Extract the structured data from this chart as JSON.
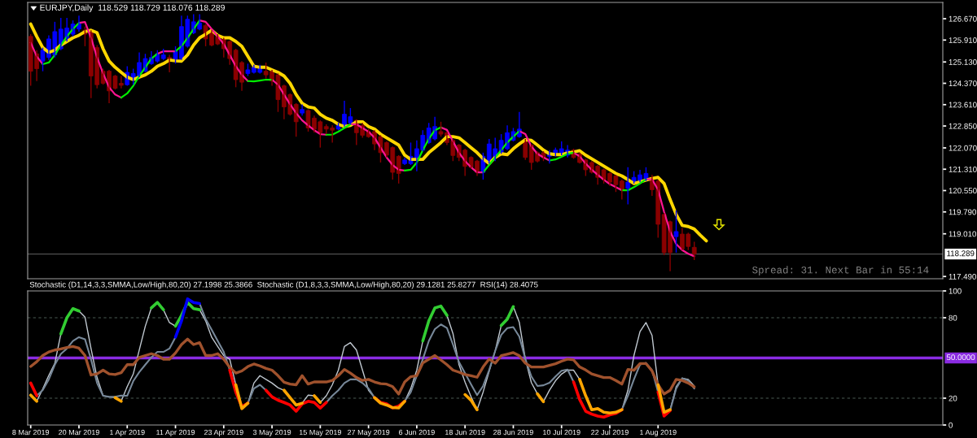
{
  "chart_data": [
    {
      "type": "candlestick",
      "title": "EURJPY,Daily  118.529 118.729 118.076 118.289",
      "categories": [
        null,
        null,
        null,
        null,
        null,
        null,
        null,
        null,
        null,
        null,
        null,
        null,
        null,
        null,
        null,
        null,
        null,
        null,
        null,
        null,
        null,
        null,
        null,
        null,
        null,
        null,
        null,
        null,
        null,
        null,
        null,
        null,
        null,
        null,
        null,
        null,
        null,
        null,
        null,
        null,
        null,
        null,
        null,
        null,
        null,
        null,
        null,
        null,
        null,
        null,
        null,
        null,
        null,
        null,
        null,
        null,
        null,
        null,
        null,
        null,
        null,
        null,
        null,
        null,
        null,
        null,
        null,
        null,
        null,
        null,
        null,
        null,
        null,
        null,
        null,
        null,
        null,
        null,
        null,
        null,
        null,
        null,
        null,
        null,
        null,
        null,
        null,
        null,
        null,
        null,
        null,
        null,
        null,
        null,
        null,
        null,
        null,
        null,
        null,
        null,
        null,
        null,
        null,
        null,
        null,
        null,
        null,
        null,
        null,
        null,
        null,
        null,
        null
      ],
      "ohlc": [
        [
          126.04,
          126.12,
          124.28,
          124.8
        ],
        [
          125.42,
          125.55,
          124.45,
          124.89
        ],
        [
          125.16,
          125.64,
          124.8,
          125.55
        ],
        [
          125.29,
          126.08,
          125.2,
          125.95
        ],
        [
          125.38,
          126.56,
          125.29,
          126.21
        ],
        [
          125.6,
          126.7,
          125.55,
          126.3
        ],
        [
          125.95,
          126.7,
          125.86,
          126.34
        ],
        [
          126.12,
          126.61,
          126.04,
          126.48
        ],
        [
          126.3,
          126.78,
          126.21,
          126.48
        ],
        [
          126.26,
          126.39,
          125.69,
          126.12
        ],
        [
          126.21,
          126.26,
          123.84,
          124.63
        ],
        [
          125.64,
          125.73,
          124.19,
          124.32
        ],
        [
          124.8,
          124.89,
          124.32,
          124.37
        ],
        [
          124.8,
          124.85,
          123.66,
          124.1
        ],
        [
          124.63,
          124.67,
          124.15,
          124.19
        ],
        [
          124.37,
          124.63,
          124.19,
          124.3
        ],
        [
          124.32,
          124.98,
          124.28,
          124.76
        ],
        [
          124.5,
          124.89,
          124.32,
          124.72
        ],
        [
          124.63,
          125.47,
          124.59,
          125.11
        ],
        [
          124.8,
          125.42,
          124.76,
          125.25
        ],
        [
          125.07,
          125.51,
          125.03,
          125.29
        ],
        [
          125.16,
          125.55,
          125.11,
          125.42
        ],
        [
          125.25,
          125.6,
          125.2,
          125.38
        ],
        [
          125.29,
          125.38,
          124.76,
          125.2
        ],
        [
          125.2,
          125.69,
          125.07,
          125.51
        ],
        [
          125.25,
          126.78,
          125.2,
          126.39
        ],
        [
          125.69,
          126.78,
          125.64,
          126.65
        ],
        [
          126.17,
          126.83,
          126.12,
          126.56
        ],
        [
          126.3,
          126.83,
          126.26,
          126.52
        ],
        [
          126.43,
          126.48,
          125.69,
          125.95
        ],
        [
          126.21,
          126.26,
          125.69,
          125.73
        ],
        [
          126.04,
          126.12,
          125.73,
          125.77
        ],
        [
          125.95,
          125.99,
          125.29,
          125.6
        ],
        [
          125.86,
          125.9,
          125.03,
          125.25
        ],
        [
          125.55,
          125.6,
          124.23,
          124.5
        ],
        [
          125.11,
          125.16,
          124.1,
          124.41
        ],
        [
          124.72,
          125.07,
          124.63,
          124.85
        ],
        [
          124.76,
          125.03,
          124.72,
          124.94
        ],
        [
          124.76,
          125.03,
          124.72,
          124.89
        ],
        [
          124.8,
          125.11,
          124.54,
          124.67
        ],
        [
          124.8,
          124.85,
          124.28,
          124.45
        ],
        [
          124.67,
          124.72,
          123.35,
          123.79
        ],
        [
          124.28,
          124.32,
          123.09,
          123.53
        ],
        [
          123.97,
          124.01,
          123.22,
          123.27
        ],
        [
          123.62,
          123.66,
          122.47,
          123.0
        ],
        [
          123.31,
          123.62,
          123.22,
          123.44
        ],
        [
          123.4,
          123.44,
          122.65,
          122.78
        ],
        [
          123.13,
          123.22,
          122.61,
          122.74
        ],
        [
          123.0,
          123.05,
          122.08,
          122.61
        ],
        [
          122.83,
          122.91,
          122.56,
          122.74
        ],
        [
          122.78,
          122.87,
          122.26,
          122.7
        ],
        [
          122.74,
          122.96,
          122.7,
          122.87
        ],
        [
          122.87,
          123.75,
          122.83,
          123.27
        ],
        [
          122.96,
          123.49,
          122.91,
          123.18
        ],
        [
          123.05,
          123.09,
          122.17,
          122.61
        ],
        [
          122.87,
          122.96,
          122.43,
          122.52
        ],
        [
          122.65,
          122.74,
          122.43,
          122.47
        ],
        [
          122.65,
          122.7,
          121.99,
          122.21
        ],
        [
          122.47,
          122.52,
          121.55,
          121.9
        ],
        [
          122.26,
          122.3,
          121.73,
          121.81
        ],
        [
          122.08,
          122.12,
          120.94,
          121.2
        ],
        [
          121.77,
          121.81,
          120.8,
          121.16
        ],
        [
          121.51,
          121.73,
          121.46,
          121.64
        ],
        [
          121.51,
          122.26,
          121.46,
          121.77
        ],
        [
          121.64,
          122.34,
          121.24,
          122.04
        ],
        [
          121.99,
          122.7,
          121.95,
          122.52
        ],
        [
          122.26,
          122.96,
          122.21,
          122.78
        ],
        [
          122.39,
          123.18,
          122.34,
          122.83
        ],
        [
          122.65,
          123.0,
          122.47,
          122.56
        ],
        [
          122.61,
          122.65,
          122.17,
          122.26
        ],
        [
          122.34,
          122.39,
          121.6,
          121.8
        ],
        [
          122.17,
          122.21,
          121.6,
          121.73
        ],
        [
          121.99,
          122.04,
          121.07,
          121.41
        ],
        [
          121.73,
          121.77,
          121.33,
          121.38
        ],
        [
          121.6,
          121.64,
          121.07,
          121.2
        ],
        [
          121.2,
          121.9,
          120.94,
          121.77
        ],
        [
          121.55,
          122.39,
          121.51,
          122.21
        ],
        [
          121.73,
          122.43,
          121.6,
          122.04
        ],
        [
          121.9,
          122.56,
          121.86,
          122.34
        ],
        [
          122.04,
          122.87,
          121.99,
          122.61
        ],
        [
          122.34,
          122.78,
          122.3,
          122.65
        ],
        [
          122.47,
          123.35,
          122.43,
          122.74
        ],
        [
          122.34,
          122.39,
          121.64,
          121.73
        ],
        [
          122.17,
          122.21,
          121.29,
          121.55
        ],
        [
          121.9,
          121.95,
          121.55,
          121.6
        ],
        [
          121.9,
          121.95,
          121.6,
          121.73
        ],
        [
          121.77,
          121.99,
          121.51,
          121.9
        ],
        [
          121.81,
          122.08,
          121.77,
          121.99
        ],
        [
          121.86,
          122.3,
          121.81,
          122.04
        ],
        [
          121.81,
          122.17,
          121.73,
          121.99
        ],
        [
          121.99,
          122.04,
          121.68,
          121.73
        ],
        [
          121.86,
          121.9,
          121.51,
          121.55
        ],
        [
          121.64,
          121.68,
          121.07,
          121.29
        ],
        [
          121.55,
          121.6,
          121.16,
          121.2
        ],
        [
          121.42,
          121.46,
          120.76,
          121.02
        ],
        [
          121.29,
          121.33,
          120.8,
          120.94
        ],
        [
          121.16,
          121.2,
          120.72,
          120.85
        ],
        [
          121.07,
          121.11,
          120.5,
          120.76
        ],
        [
          120.89,
          120.94,
          120.23,
          120.58
        ],
        [
          120.63,
          121.38,
          120.06,
          120.85
        ],
        [
          120.85,
          121.24,
          120.8,
          121.02
        ],
        [
          120.89,
          121.29,
          120.85,
          121.11
        ],
        [
          120.94,
          121.38,
          120.89,
          121.16
        ],
        [
          120.94,
          121.11,
          120.36,
          120.58
        ],
        [
          120.89,
          120.94,
          118.87,
          119.35
        ],
        [
          119.7,
          119.75,
          118.25,
          118.34
        ],
        [
          119.44,
          119.48,
          117.68,
          118.34
        ],
        [
          118.91,
          119.84,
          118.34,
          119.09
        ],
        [
          119.0,
          119.22,
          118.43,
          118.47
        ],
        [
          119.0,
          119.05,
          118.43,
          118.56
        ],
        [
          118.529,
          118.729,
          118.076,
          118.289
        ],
        null,
        null
      ],
      "colors": [
        "#8b0000",
        "#8b0000",
        "#0000ff",
        "#0000ff",
        "#0000ff",
        "#0000ff",
        "#0000ff",
        "#0000ff",
        "#0000ff",
        "#8b0000",
        "#8b0000",
        "#8b0000",
        "#8b0000",
        "#8b0000",
        "#8b0000",
        "#8b0000",
        "#0000ff",
        "#0000ff",
        "#0000ff",
        "#0000ff",
        "#0000ff",
        "#0000ff",
        "#0000ff",
        "#8b0000",
        "#0000ff",
        "#0000ff",
        "#0000ff",
        "#0000ff",
        "#0000ff",
        "#8b0000",
        "#8b0000",
        "#8b0000",
        "#8b0000",
        "#8b0000",
        "#8b0000",
        "#8b0000",
        "#0000ff",
        "#0000ff",
        "#0000ff",
        "#8b0000",
        "#8b0000",
        "#8b0000",
        "#8b0000",
        "#8b0000",
        "#8b0000",
        "#0000ff",
        "#8b0000",
        "#8b0000",
        "#8b0000",
        "#8b0000",
        "#8b0000",
        "#0000ff",
        "#0000ff",
        "#0000ff",
        "#8b0000",
        "#8b0000",
        "#8b0000",
        "#8b0000",
        "#8b0000",
        "#8b0000",
        "#8b0000",
        "#8b0000",
        "#0000ff",
        "#0000ff",
        "#0000ff",
        "#0000ff",
        "#0000ff",
        "#0000ff",
        "#8b0000",
        "#8b0000",
        "#8b0000",
        "#8b0000",
        "#8b0000",
        "#8b0000",
        "#8b0000",
        "#0000ff",
        "#0000ff",
        "#0000ff",
        "#0000ff",
        "#0000ff",
        "#0000ff",
        "#0000ff",
        "#8b0000",
        "#8b0000",
        "#8b0000",
        "#8b0000",
        "#0000ff",
        "#0000ff",
        "#0000ff",
        "#0000ff",
        "#8b0000",
        "#8b0000",
        "#8b0000",
        "#8b0000",
        "#8b0000",
        "#8b0000",
        "#8b0000",
        "#8b0000",
        "#8b0000",
        "#0000ff",
        "#0000ff",
        "#0000ff",
        "#0000ff",
        "#8b0000",
        "#8b0000",
        "#8b0000",
        "#8b0000",
        "#0000ff",
        "#8b0000",
        "#8b0000",
        "#8b0000",
        null,
        null
      ],
      "series": [
        {
          "type": "line",
          "color": "#ffd700",
          "values": [
            126.48,
            126.04,
            125.64,
            125.47,
            125.55,
            125.73,
            125.86,
            125.99,
            126.08,
            126.21,
            126.26,
            126.17,
            125.6,
            125.16,
            124.94,
            124.76,
            124.59,
            124.5,
            124.59,
            124.67,
            124.8,
            124.98,
            125.07,
            125.2,
            125.17,
            125.16,
            125.38,
            125.73,
            125.99,
            126.12,
            126.26,
            126.08,
            125.99,
            125.99,
            125.86,
            125.69,
            125.33,
            124.98,
            124.94,
            124.94,
            124.85,
            124.76,
            124.63,
            124.37,
            123.97,
            123.66,
            123.53,
            123.49,
            123.27,
            123.13,
            123.05,
            122.91,
            122.83,
            122.87,
            123.0,
            123.0,
            122.83,
            122.74,
            122.56,
            122.43,
            122.3,
            122.17,
            121.81,
            121.66,
            121.66,
            121.66,
            121.9,
            122.08,
            122.26,
            122.47,
            122.47,
            122.43,
            122.26,
            122.08,
            121.9,
            121.68,
            121.51,
            121.73,
            121.86,
            121.83,
            122.04,
            122.21,
            122.36,
            122.34,
            122.17,
            121.99,
            121.86,
            121.83,
            121.83,
            121.89,
            121.92,
            121.97,
            121.81,
            121.68,
            121.55,
            121.42,
            121.29,
            121.16,
            121.07,
            120.94,
            120.8,
            120.86,
            120.92,
            120.98,
            121.02,
            120.8,
            120.23,
            119.7,
            119.31,
            119.27,
            119.18,
            118.96,
            118.76
          ]
        },
        {
          "type": "line",
          "color": "#ff1493",
          "values": [
            125.82,
            125.33,
            125.05,
            null,
            null,
            null,
            null,
            null,
            126.52,
            126.55,
            125.99,
            125.29,
            124.72,
            124.23,
            123.97,
            123.86,
            null,
            null,
            null,
            null,
            null,
            125.42,
            125.51,
            125.51,
            125.51,
            null,
            null,
            null,
            126.61,
            126.56,
            126.3,
            126.04,
            125.77,
            125.38,
            124.98,
            124.67,
            124.45,
            null,
            null,
            null,
            124.5,
            124.32,
            123.97,
            123.62,
            123.31,
            123.05,
            122.87,
            122.7,
            122.56,
            122.54,
            null,
            null,
            null,
            122.91,
            122.91,
            122.78,
            122.65,
            122.43,
            122.08,
            121.73,
            121.46,
            121.29,
            121.26,
            null,
            null,
            null,
            null,
            null,
            122.8,
            122.71,
            122.3,
            121.9,
            121.6,
            121.38,
            121.2,
            121.2,
            null,
            null,
            null,
            null,
            null,
            122.67,
            122.56,
            122.12,
            121.86,
            121.73,
            121.62,
            null,
            null,
            null,
            121.9,
            121.77,
            121.51,
            121.29,
            121.11,
            120.94,
            120.78,
            120.67,
            120.56,
            null,
            null,
            null,
            120.95,
            120.95,
            120.58,
            119.79,
            119.09,
            118.65,
            118.43,
            118.3,
            118.21,
            null,
            null
          ]
        },
        {
          "type": "line",
          "color": "#00ee00",
          "values": [
            null,
            null,
            125.05,
            125.11,
            125.38,
            125.73,
            126.04,
            126.3,
            126.52,
            null,
            null,
            null,
            null,
            null,
            null,
            123.86,
            124.01,
            124.28,
            124.63,
            124.94,
            125.25,
            125.42,
            null,
            null,
            125.51,
            125.69,
            125.99,
            126.3,
            126.61,
            null,
            null,
            null,
            null,
            null,
            null,
            null,
            124.45,
            124.44,
            124.47,
            124.5,
            124.5,
            null,
            null,
            null,
            null,
            null,
            null,
            null,
            null,
            122.54,
            122.54,
            122.65,
            122.78,
            122.91,
            null,
            null,
            null,
            null,
            null,
            null,
            null,
            null,
            121.26,
            121.29,
            121.55,
            121.99,
            122.39,
            122.7,
            122.8,
            null,
            null,
            null,
            null,
            null,
            null,
            121.2,
            121.46,
            121.73,
            121.99,
            122.26,
            122.47,
            122.67,
            null,
            null,
            null,
            null,
            121.62,
            121.66,
            121.75,
            121.86,
            121.9,
            null,
            null,
            null,
            null,
            null,
            null,
            null,
            120.56,
            120.56,
            120.67,
            120.8,
            120.95,
            null,
            null,
            null,
            null,
            null,
            null,
            null,
            null,
            null,
            null
          ]
        }
      ],
      "ylim": [
        117.41,
        127.25
      ],
      "yticks": [
        {
          "value": 117.49,
          "label": "117.490"
        },
        {
          "value": 119.01,
          "label": "119.010"
        },
        {
          "value": 119.79,
          "label": "119.790"
        },
        {
          "value": 120.55,
          "label": "120.550"
        },
        {
          "value": 121.31,
          "label": "121.310"
        },
        {
          "value": 122.07,
          "label": "122.070"
        },
        {
          "value": 122.85,
          "label": "122.850"
        },
        {
          "value": 123.61,
          "label": "123.610"
        },
        {
          "value": 124.37,
          "label": "124.370"
        },
        {
          "value": 125.13,
          "label": "125.130"
        },
        {
          "value": 125.91,
          "label": "125.910"
        },
        {
          "value": 126.67,
          "label": "126.670"
        }
      ],
      "ref_lines": [
        {
          "axis": "y",
          "value": 118.289,
          "label": "118.289",
          "color": "#505050"
        }
      ],
      "annotations": [
        "Spread: 31. Next Bar in 55:14"
      ],
      "tick_labels": "y"
    },
    {
      "type": "line",
      "title": "Stochastic (D1,14,3,3,SMMA,Low/High,80,20) 27.1998 25.3866  Stochastic (D1,8,3,3,SMMA,Low/High,80,20) 29.1281 25.8277  RSI(14) 28.4075",
      "categories": [
        "8 Mar 2019",
        null,
        null,
        null,
        null,
        null,
        null,
        null,
        "20 Mar 2019",
        null,
        null,
        null,
        null,
        null,
        null,
        null,
        "1 Apr 2019",
        null,
        null,
        null,
        null,
        null,
        null,
        null,
        "11 Apr 2019",
        null,
        null,
        null,
        null,
        null,
        null,
        null,
        "23 Apr 2019",
        null,
        null,
        null,
        null,
        null,
        null,
        null,
        "3 May 2019",
        null,
        null,
        null,
        null,
        null,
        null,
        null,
        "15 May 2019",
        null,
        null,
        null,
        null,
        null,
        null,
        null,
        "27 May 2019",
        null,
        null,
        null,
        null,
        null,
        null,
        null,
        "6 Jun 2019",
        null,
        null,
        null,
        null,
        null,
        null,
        null,
        "18 Jun 2019",
        null,
        null,
        null,
        null,
        null,
        null,
        null,
        "28 Jun 2019",
        null,
        null,
        null,
        null,
        null,
        null,
        null,
        "10 Jul 2019",
        null,
        null,
        null,
        null,
        null,
        null,
        null,
        "22 Jul 2019",
        null,
        null,
        null,
        null,
        null,
        null,
        null,
        "1 Aug 2019",
        null,
        null,
        null,
        null,
        null,
        null,
        null,
        null
      ],
      "series": [
        {
          "color": "#c0c8d0",
          "values": [
            null,
            17.7,
            27,
            37,
            46,
            68,
            null,
            null,
            85,
            80.5,
            57,
            35.4,
            21.8,
            21,
            20.4,
            17.7,
            28.6,
            38,
            56,
            73.7,
            87.3,
            null,
            86,
            76.4,
            73.7,
            null,
            null,
            null,
            86,
            77.7,
            65.5,
            58.6,
            51.8,
            49,
            30,
            null,
            16.3,
            31.3,
            36.8,
            34,
            31.3,
            27.8,
            25.9,
            null,
            null,
            16.3,
            22.3,
            21.8,
            16.8,
            21.8,
            30,
            40.9,
            58.6,
            61.4,
            55.9,
            40.9,
            25.9,
            20.4,
            null,
            null,
            null,
            null,
            17.7,
            27.2,
            40.9,
            62.7,
            null,
            null,
            null,
            81.8,
            68.2,
            45,
            32,
            21,
            11.4,
            24.6,
            40,
            55.3,
            74.2,
            null,
            88.3,
            76.5,
            49.2,
            31.5,
            23.3,
            17.4,
            26,
            33,
            38,
            41,
            40.9,
            34,
            null,
            null,
            null,
            null,
            null,
            null,
            11.4,
            25.9,
            51.8,
            69.6,
            76.4,
            66.8,
            30,
            null,
            11.4,
            28.6,
            34.9,
            34,
            29.1,
            null,
            null
          ]
        },
        {
          "color": "#778899",
          "values": [
            null,
            21.8,
            26,
            34,
            45,
            53,
            57,
            62.7,
            65.5,
            64,
            49,
            31.3,
            21.8,
            21,
            21,
            22,
            21.8,
            32.7,
            39.5,
            45,
            50.4,
            54.5,
            54.5,
            57,
            65.5,
            null,
            null,
            null,
            90.6,
            79.1,
            71,
            62.7,
            54.5,
            40.9,
            null,
            null,
            16.3,
            27.2,
            30,
            25.9,
            null,
            null,
            null,
            null,
            null,
            null,
            null,
            null,
            null,
            16.8,
            21.8,
            25.9,
            31.3,
            34,
            34,
            31.3,
            27.2,
            20.4,
            null,
            null,
            null,
            null,
            17.7,
            24.5,
            36.8,
            49,
            62.7,
            71.5,
            75,
            72.3,
            60,
            46.9,
            38.6,
            30.3,
            22.3,
            29.1,
            41,
            55.3,
            67.2,
            72.3,
            73,
            65.9,
            49.2,
            36.2,
            29.1,
            29.6,
            31.5,
            36.2,
            40.5,
            41.4,
            32.1,
            null,
            null,
            null,
            null,
            null,
            null,
            null,
            11.4,
            21.8,
            34,
            45,
            46.3,
            40.9,
            24.5,
            null,
            10.8,
            27.2,
            34.9,
            33.2,
            27.2,
            null,
            null
          ]
        },
        {
          "color": "#a0522d",
          "values": [
            43.6,
            47.2,
            51.8,
            54.5,
            55.9,
            56.7,
            57.8,
            58.6,
            57.3,
            51.8,
            37.3,
            38.1,
            40.9,
            38.1,
            37.6,
            39,
            45,
            45,
            50.4,
            51.8,
            53.2,
            51.8,
            49.1,
            49.1,
            53.7,
            60,
            64.1,
            60,
            61.4,
            51.8,
            51.8,
            53.2,
            49.1,
            43.1,
            38.7,
            40.3,
            43.6,
            45.5,
            44.1,
            42.2,
            40.9,
            36.8,
            31.9,
            30.5,
            30,
            36.8,
            30.5,
            32.1,
            32.1,
            32.1,
            33.2,
            36.8,
            41.4,
            38.7,
            35.4,
            33.2,
            34,
            32.1,
            30.8,
            30.5,
            28.6,
            23.1,
            32.1,
            36,
            36.8,
            46.3,
            49.1,
            51.8,
            48.5,
            45,
            40.9,
            39.4,
            37.6,
            36.8,
            35.6,
            43.3,
            49.2,
            46.1,
            51.7,
            52.8,
            54,
            51.7,
            46.1,
            43.3,
            43.3,
            43.3,
            44.5,
            45.7,
            47.6,
            49.2,
            48.5,
            43.3,
            41,
            38.1,
            36.8,
            35.4,
            35.4,
            33.2,
            30.5,
            41.4,
            40.9,
            45.8,
            45.8,
            40.3,
            30,
            23.1,
            25.9,
            34,
            33.2,
            31.3,
            28.4,
            null,
            null
          ]
        },
        {
          "color": "#32cd32",
          "values": [
            null,
            null,
            null,
            null,
            null,
            68,
            80,
            86.8,
            85,
            null,
            null,
            null,
            null,
            null,
            null,
            null,
            null,
            null,
            null,
            null,
            87.3,
            91.4,
            86,
            null,
            73.7,
            81.8,
            91.4,
            86.8,
            86,
            null,
            null,
            null,
            null,
            null,
            null,
            null,
            null,
            null,
            null,
            null,
            null,
            null,
            null,
            null,
            null,
            null,
            null,
            null,
            null,
            null,
            null,
            null,
            null,
            null,
            null,
            null,
            null,
            null,
            null,
            null,
            null,
            null,
            null,
            null,
            null,
            62.7,
            77.7,
            87.3,
            88.7,
            81.8,
            null,
            null,
            null,
            null,
            null,
            null,
            null,
            null,
            74.2,
            78.9,
            88.3,
            null,
            null,
            null,
            null,
            null,
            null,
            null,
            null,
            null,
            null,
            null,
            null,
            null,
            null,
            null,
            null,
            null,
            null,
            null,
            null,
            null,
            null,
            null,
            null,
            null,
            null,
            null,
            null,
            null,
            null,
            null,
            null
          ]
        },
        {
          "color": "#0000ff",
          "values": [
            null,
            null,
            null,
            null,
            null,
            null,
            null,
            null,
            null,
            null,
            null,
            null,
            null,
            null,
            null,
            null,
            null,
            null,
            null,
            null,
            null,
            null,
            null,
            null,
            65.5,
            77.7,
            94,
            91.4,
            90.6,
            null,
            null,
            null,
            null,
            null,
            null,
            null,
            null,
            null,
            null,
            null,
            null,
            null,
            null,
            null,
            null,
            null,
            null,
            null,
            null,
            null,
            null,
            null,
            null,
            null,
            null,
            null,
            null,
            null,
            null,
            null,
            null,
            null,
            null,
            null,
            null,
            null,
            null,
            null,
            null,
            null,
            null,
            null,
            null,
            null,
            null,
            null,
            null,
            null,
            null,
            null,
            null,
            null,
            null,
            null,
            null,
            null,
            null,
            null,
            null,
            null,
            null,
            null,
            null,
            null,
            null,
            null,
            null,
            null,
            null,
            null,
            null,
            null,
            null,
            null,
            null,
            null,
            null,
            null,
            null,
            null,
            null,
            null,
            null
          ]
        },
        {
          "color": "#ff0000",
          "values": [
            31.3,
            21.8,
            null,
            null,
            null,
            null,
            null,
            null,
            null,
            null,
            null,
            null,
            null,
            null,
            null,
            null,
            null,
            null,
            null,
            null,
            null,
            null,
            null,
            null,
            null,
            null,
            null,
            null,
            null,
            null,
            null,
            null,
            null,
            40.9,
            24.5,
            13.6,
            16.3,
            null,
            null,
            25.9,
            21,
            18.5,
            16.8,
            14.9,
            10.3,
            15.7,
            17.7,
            16.8,
            12.7,
            16.8,
            null,
            null,
            null,
            null,
            null,
            null,
            null,
            20.4,
            16.8,
            15.7,
            12.7,
            14.1,
            17.7,
            null,
            null,
            null,
            null,
            null,
            null,
            null,
            null,
            null,
            null,
            null,
            null,
            null,
            null,
            null,
            null,
            null,
            null,
            null,
            null,
            null,
            null,
            null,
            null,
            null,
            null,
            null,
            32.1,
            19,
            10.3,
            8.1,
            6.7,
            5.9,
            7.6,
            8.6,
            11.4,
            null,
            null,
            null,
            null,
            null,
            24.5,
            6.7,
            10.8,
            null,
            null,
            null,
            null,
            null,
            null
          ]
        },
        {
          "color": "#ffa500",
          "values": [
            22.3,
            17.7,
            null,
            null,
            null,
            null,
            null,
            null,
            null,
            null,
            null,
            null,
            null,
            null,
            20.4,
            17.7,
            null,
            null,
            null,
            null,
            null,
            null,
            null,
            null,
            null,
            null,
            null,
            null,
            null,
            null,
            null,
            null,
            null,
            null,
            30,
            12.2,
            16.3,
            null,
            null,
            null,
            null,
            null,
            25.9,
            20.4,
            14.9,
            16.3,
            null,
            21.8,
            16.8,
            null,
            null,
            null,
            null,
            null,
            null,
            null,
            null,
            20.4,
            16.3,
            14.9,
            13,
            12.7,
            17.7,
            null,
            null,
            null,
            null,
            null,
            null,
            null,
            null,
            null,
            22.7,
            18.4,
            11.4,
            null,
            null,
            null,
            null,
            null,
            null,
            null,
            null,
            null,
            23.3,
            17.4,
            null,
            null,
            null,
            null,
            null,
            34,
            21.8,
            11.4,
            12.2,
            9.5,
            8.9,
            9.5,
            11.4,
            null,
            null,
            null,
            null,
            null,
            30,
            9.5,
            11.4,
            null,
            null,
            null,
            null,
            null,
            null
          ]
        }
      ],
      "ylim": [
        0,
        100
      ],
      "yticks": [
        0,
        20,
        80,
        100
      ],
      "ref_lines": [
        {
          "axis": "y",
          "value": 50,
          "label": "50.0000",
          "color": "#8a2be2"
        },
        {
          "axis": "y",
          "value": 80,
          "color": "#4a5a52",
          "line_style": "dashed"
        },
        {
          "axis": "y",
          "value": 20,
          "color": "#4a5a52",
          "line_style": "dashed"
        }
      ]
    }
  ]
}
